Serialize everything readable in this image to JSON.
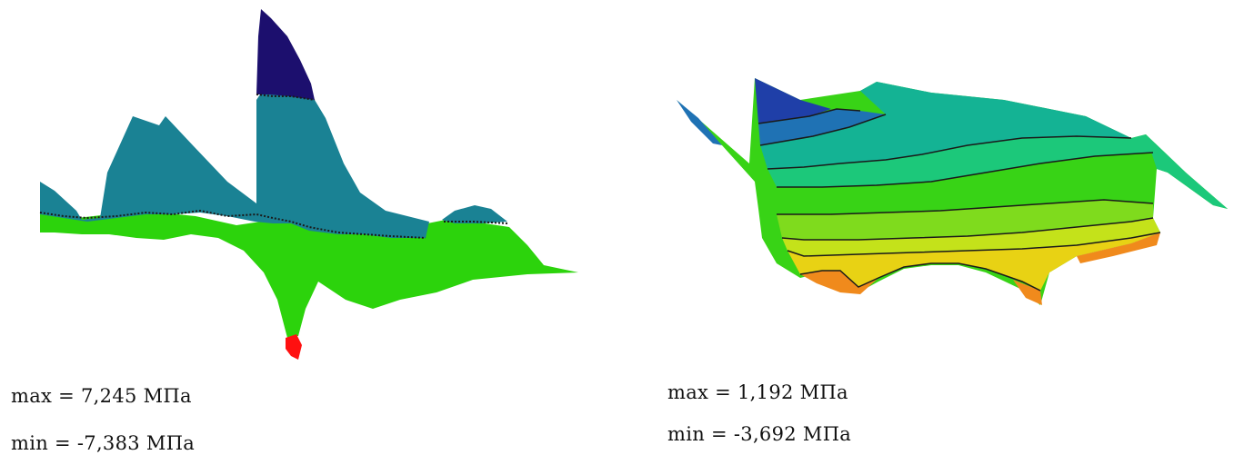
{
  "panels": [
    {
      "max_label": "max = 7,245 МПа",
      "min_label": "min = -7,383 МПа"
    },
    {
      "max_label": "max = 1,192 МПа",
      "min_label": "min = -3,692 МПа"
    }
  ],
  "colors": {
    "dark_navy": "#1c0f6e",
    "teal": "#1a8294",
    "green": "#2cd30c",
    "red": "#ff1010",
    "blue": "#1f3fa8",
    "steel_blue": "#1f72b4",
    "teal_green": "#14b394",
    "aqua_green": "#1cc87a",
    "bright_green": "#38d316",
    "lime": "#7fdb1d",
    "yellow_green": "#c4e21a",
    "yellow": "#e8d214",
    "orange": "#f08a1c",
    "contour": "#1a1a1a"
  }
}
